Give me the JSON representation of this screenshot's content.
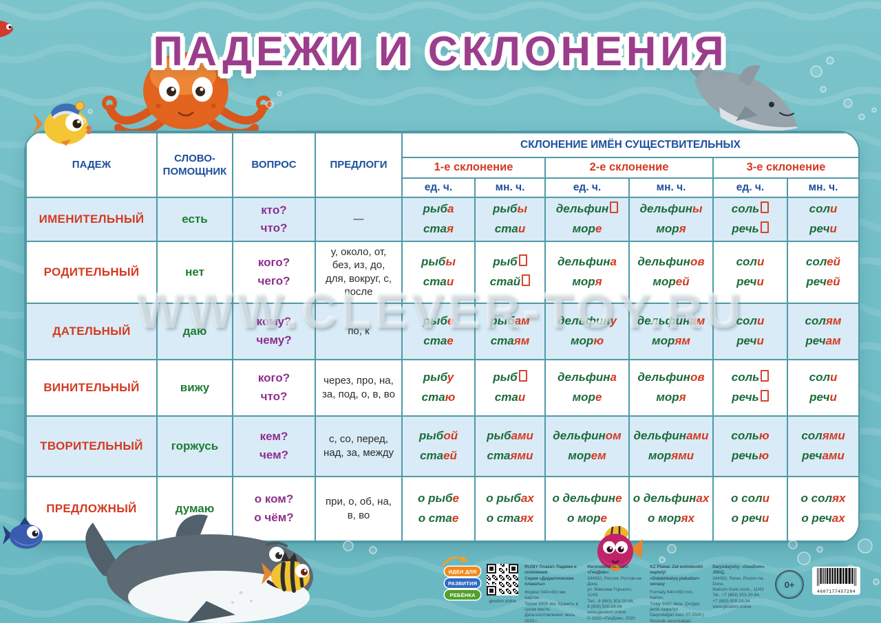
{
  "title": "ПАДЕЖИ И СКЛОНЕНИЯ",
  "watermark": "WWW.CLEVER-TOY.RU",
  "colors": {
    "background_teal": "#72bec7",
    "border_teal": "#4d9aa7",
    "row_stripe_blue": "#d9ebf6",
    "case_red": "#d43a21",
    "stem_green": "#1c6b3b",
    "question_purple": "#8d2f8d",
    "header_blue": "#1d4f9c",
    "title_purple": "#9c3d8c"
  },
  "table": {
    "headers": {
      "case": "ПАДЕЖ",
      "helper": "СЛОВО-ПОМОЩНИК",
      "question": "ВОПРОС",
      "prepositions": "ПРЕДЛОГИ",
      "declension_group": "СКЛОНЕНИЕ ИМЁН СУЩЕСТВИТЕЛЬНЫХ",
      "declensions": [
        "1-е склонение",
        "2-е склонение",
        "3-е склонение"
      ],
      "singular": "ед. ч.",
      "plural": "мн. ч."
    },
    "rows": [
      {
        "name": "ИМЕНИТЕЛЬНЫЙ",
        "helper": "есть",
        "question": [
          "кто?",
          "что?"
        ],
        "prepositions": "—",
        "cells": [
          [
            {
              "s": "рыб",
              "e": "а"
            },
            {
              "s": "ста",
              "e": "я"
            }
          ],
          [
            {
              "s": "рыб",
              "e": "ы"
            },
            {
              "s": "ста",
              "e": "и"
            }
          ],
          [
            {
              "s": "дельфин",
              "z": true
            },
            {
              "s": "мор",
              "e": "е"
            }
          ],
          [
            {
              "s": "дельфин",
              "e": "ы"
            },
            {
              "s": "мор",
              "e": "я"
            }
          ],
          [
            {
              "s": "соль",
              "z": true
            },
            {
              "s": "речь",
              "z": true
            }
          ],
          [
            {
              "s": "сол",
              "e": "и"
            },
            {
              "s": "реч",
              "e": "и"
            }
          ]
        ]
      },
      {
        "name": "РОДИТЕЛЬНЫЙ",
        "helper": "нет",
        "question": [
          "кого?",
          "чего?"
        ],
        "prepositions": "у, около, от, без, из, до, для, вокруг, с, после",
        "cells": [
          [
            {
              "s": "рыб",
              "e": "ы"
            },
            {
              "s": "ста",
              "e": "и"
            }
          ],
          [
            {
              "s": "рыб",
              "z": true
            },
            {
              "s": "стай",
              "z": true
            }
          ],
          [
            {
              "s": "дельфин",
              "e": "а"
            },
            {
              "s": "мор",
              "e": "я"
            }
          ],
          [
            {
              "s": "дельфин",
              "e": "ов"
            },
            {
              "s": "мор",
              "e": "ей"
            }
          ],
          [
            {
              "s": "сол",
              "e": "и"
            },
            {
              "s": "реч",
              "e": "и"
            }
          ],
          [
            {
              "s": "сол",
              "e": "ей"
            },
            {
              "s": "реч",
              "e": "ей"
            }
          ]
        ]
      },
      {
        "name": "ДАТЕЛЬНЫЙ",
        "helper": "даю",
        "question": [
          "кому?",
          "чему?"
        ],
        "prepositions": "по, к",
        "cells": [
          [
            {
              "s": "рыб",
              "e": "е"
            },
            {
              "s": "ста",
              "e": "е"
            }
          ],
          [
            {
              "s": "рыб",
              "e": "ам"
            },
            {
              "s": "ста",
              "e": "ям"
            }
          ],
          [
            {
              "s": "дельфин",
              "e": "у"
            },
            {
              "s": "мор",
              "e": "ю"
            }
          ],
          [
            {
              "s": "дельфин",
              "e": "ам"
            },
            {
              "s": "мор",
              "e": "ям"
            }
          ],
          [
            {
              "s": "сол",
              "e": "и"
            },
            {
              "s": "реч",
              "e": "и"
            }
          ],
          [
            {
              "s": "сол",
              "e": "ям"
            },
            {
              "s": "реч",
              "e": "ам"
            }
          ]
        ]
      },
      {
        "name": "ВИНИТЕЛЬНЫЙ",
        "helper": "вижу",
        "question": [
          "кого?",
          "что?"
        ],
        "prepositions": "через, про, на, за, под, о, в, во",
        "cells": [
          [
            {
              "s": "рыб",
              "e": "у"
            },
            {
              "s": "ста",
              "e": "ю"
            }
          ],
          [
            {
              "s": "рыб",
              "z": true
            },
            {
              "s": "ста",
              "e": "и"
            }
          ],
          [
            {
              "s": "дельфин",
              "e": "а"
            },
            {
              "s": "мор",
              "e": "е"
            }
          ],
          [
            {
              "s": "дельфин",
              "e": "ов"
            },
            {
              "s": "мор",
              "e": "я"
            }
          ],
          [
            {
              "s": "соль",
              "z": true
            },
            {
              "s": "речь",
              "z": true
            }
          ],
          [
            {
              "s": "сол",
              "e": "и"
            },
            {
              "s": "реч",
              "e": "и"
            }
          ]
        ]
      },
      {
        "name": "ТВОРИТЕЛЬНЫЙ",
        "helper": "горжусь",
        "question": [
          "кем?",
          "чем?"
        ],
        "prepositions": "с, со, перед, над, за, между",
        "cells": [
          [
            {
              "s": "рыб",
              "e": "ой"
            },
            {
              "s": "ста",
              "e": "ей"
            }
          ],
          [
            {
              "s": "рыб",
              "e": "ами"
            },
            {
              "s": "ста",
              "e": "ями"
            }
          ],
          [
            {
              "s": "дельфин",
              "e": "ом"
            },
            {
              "s": "мор",
              "e": "ем"
            }
          ],
          [
            {
              "s": "дельфин",
              "e": "ами"
            },
            {
              "s": "мор",
              "e": "ями"
            }
          ],
          [
            {
              "s": "соль",
              "e": "ю"
            },
            {
              "s": "речь",
              "e": "ю"
            }
          ],
          [
            {
              "s": "сол",
              "e": "ями"
            },
            {
              "s": "реч",
              "e": "ами"
            }
          ]
        ]
      },
      {
        "name": "ПРЕДЛОЖНЫЙ",
        "helper": "думаю",
        "question": [
          "о ком?",
          "о чём?"
        ],
        "prepositions": "при, о, об, на, в, во",
        "cells": [
          [
            {
              "s": "о рыб",
              "e": "е"
            },
            {
              "s": "о ста",
              "e": "е"
            }
          ],
          [
            {
              "s": "о рыб",
              "e": "ах"
            },
            {
              "s": "о ста",
              "e": "ях"
            }
          ],
          [
            {
              "s": "о дельфин",
              "e": "е"
            },
            {
              "s": "о мор",
              "e": "е"
            }
          ],
          [
            {
              "s": "о дельфин",
              "e": "ах"
            },
            {
              "s": "о мор",
              "e": "ях"
            }
          ],
          [
            {
              "s": "о сол",
              "e": "и"
            },
            {
              "s": "о реч",
              "e": "и"
            }
          ],
          [
            {
              "s": "о сол",
              "e": "ях"
            },
            {
              "s": "о реч",
              "e": "ах"
            }
          ]
        ]
      }
    ]
  },
  "footer": {
    "logo_lines": [
      "ИДЕИ ДЛЯ",
      "РАЗВИТИЯ",
      "РЕБЁНКА"
    ],
    "qr_caption": "geodom.online",
    "columns": [
      {
        "bold_first": 2,
        "lines": [
          "RU/BY Плакат. Падежи и склонения",
          "Серия «Дидактические плакаты»",
          "",
          "Формат 640×450 мм. Картон.",
          "Тираж 5000 экз. Хранить в сухом месте.",
          "Дата изготовления: июль 2020 г.",
          "Изготовлено в России."
        ]
      },
      {
        "bold_first": 1,
        "lines": [
          "Изготовитель ООО «ГеоДом»:",
          "344082, Россия, Ростов-на-Дону,",
          "ул. Максима Горького, 11/43",
          "Тел.: 8 (863) 303-20-64,",
          "8 (800) 500-24-04",
          "www.geodom.online",
          "© ООО «ГеоДом», 2020"
        ]
      },
      {
        "bold_first": 2,
        "lines": [
          "KZ Plakat. Zat esimderdiń septelýi",
          "«Dıdaktıkalyq plakattar» serıasy",
          "",
          "Formaty 640×450 mm. Karton.",
          "Tırajy 5000 dana. Qurǵaq jerde saqtańyz.",
          "Daıyndalǵan kúni: 07.2020 j.",
          "Reseıde daıyndalǵan."
        ]
      },
      {
        "bold_first": 1,
        "lines": [
          "Daıyndaýshy: «GeoDom» JShQ,",
          "344082, Reseı, Rostov-na-Donu,",
          "Maksim Gorkı kósh., 11/43",
          "Tel.: +7 (863) 303-20-64,",
          "+7 (800) 500-24-04",
          "www.geodom.online"
        ]
      }
    ],
    "age_badge": "0+",
    "barcode_number": "4607177457284"
  }
}
